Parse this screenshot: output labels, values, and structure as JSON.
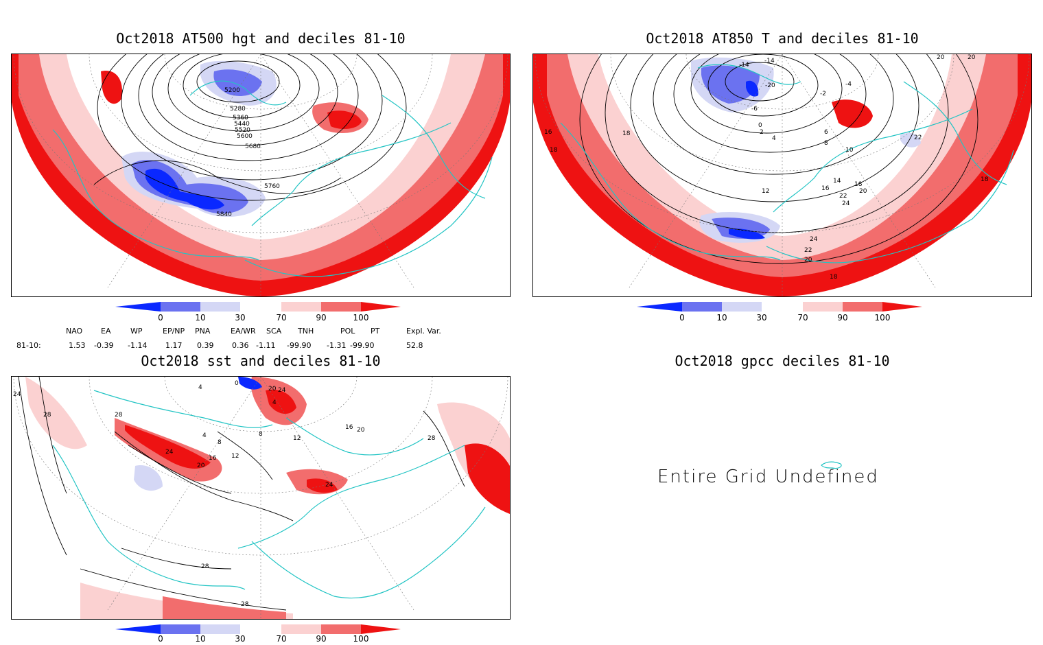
{
  "panels": {
    "hgt": {
      "title": "Oct2018 AT500 hgt and deciles 81-10",
      "contour_labels": [
        "5200",
        "5280",
        "5360",
        "5440",
        "5520",
        "5600",
        "5680",
        "5760",
        "5840"
      ]
    },
    "t850": {
      "title": "Oct2018 AT850 T and deciles 81-10",
      "contour_labels": [
        "-14",
        "-14",
        "-20",
        "-6",
        "-2",
        "0",
        "2",
        "4",
        "-4",
        "6",
        "8",
        "10",
        "12",
        "14",
        "16",
        "16",
        "18",
        "18",
        "18",
        "18",
        "20",
        "20",
        "22",
        "22",
        "24",
        "24",
        "22",
        "20",
        "18",
        "20"
      ]
    },
    "sst": {
      "title": "Oct2018 sst and deciles 81-10",
      "contour_labels": [
        "24",
        "28",
        "28",
        "0",
        "4",
        "4",
        "4",
        "8",
        "8",
        "12",
        "12",
        "16",
        "20",
        "24",
        "20",
        "24",
        "16",
        "20",
        "28",
        "28",
        "28",
        "24"
      ]
    },
    "gpcc": {
      "title": "Oct2018 gpcc deciles 81-10",
      "message": "Entire Grid Undefined"
    }
  },
  "colorbar": {
    "labels": [
      "0",
      "10",
      "30",
      "70",
      "90",
      "100"
    ],
    "colors": [
      "#0a28ff",
      "#6b72f0",
      "#d4d7f5",
      "#ffffff",
      "#fbd1d1",
      "#f26d6d",
      "#ee1212"
    ]
  },
  "teleconnections": {
    "headers": [
      "NAO",
      "EA",
      "WP",
      "EP/NP",
      "PNA",
      "EA/WR",
      "SCA",
      "TNH",
      "POL",
      "PT",
      "Expl. Var."
    ],
    "row_label": "81-10:",
    "values": [
      "1.53",
      "-0.39",
      "-1.14",
      "1.17",
      "0.39",
      "0.36",
      "-1.11",
      "-99.90",
      "-1.31",
      "-99.90",
      "52.8"
    ]
  }
}
